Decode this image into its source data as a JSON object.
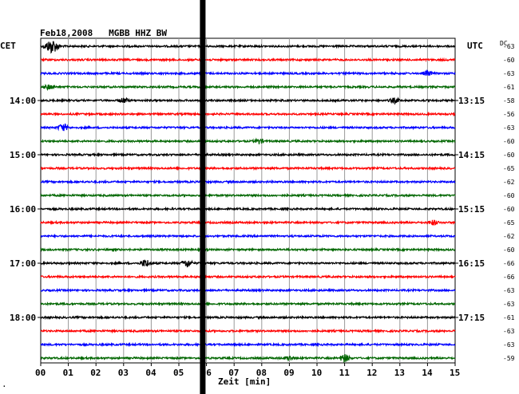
{
  "header": {
    "title": "Feb18,2008   MGBB HHZ BW",
    "left_timezone": "CET",
    "right_timezone": "UTC",
    "dc_label": "DC"
  },
  "footer": {
    "corner_mark": "."
  },
  "chart_data": {
    "type": "line",
    "title": "Feb18,2008   MGBB HHZ BW",
    "xlabel": "Zeit [min]",
    "xlim": [
      0,
      15
    ],
    "x_ticks": [
      "00",
      "01",
      "02",
      "03",
      "04",
      "05",
      "06",
      "07",
      "08",
      "09",
      "10",
      "11",
      "12",
      "13",
      "14",
      "15"
    ],
    "trace_colors": [
      "#000000",
      "#ff0000",
      "#0000ff",
      "#006600"
    ],
    "left_hour_labels": [
      {
        "trace": 4,
        "text": "14:00"
      },
      {
        "trace": 8,
        "text": "15:00"
      },
      {
        "trace": 12,
        "text": "16:00"
      },
      {
        "trace": 16,
        "text": "17:00"
      },
      {
        "trace": 20,
        "text": "18:00"
      }
    ],
    "right_hour_labels": [
      {
        "trace": 4,
        "text": "13:15"
      },
      {
        "trace": 8,
        "text": "14:15"
      },
      {
        "trace": 12,
        "text": "15:15"
      },
      {
        "trace": 16,
        "text": "16:15"
      },
      {
        "trace": 20,
        "text": "17:15"
      }
    ],
    "dc_offsets": [
      -63,
      -60,
      -63,
      -61,
      -58,
      -56,
      -63,
      -60,
      -60,
      -65,
      -62,
      -60,
      -60,
      -65,
      -62,
      -60,
      -66,
      -66,
      -63,
      -63,
      -61,
      -63,
      -63,
      -59
    ],
    "events": [
      {
        "trace": 0,
        "minute": 0.4,
        "amplitude": "large"
      },
      {
        "trace": 2,
        "minute": 14.0,
        "amplitude": "small"
      },
      {
        "trace": 3,
        "minute": 0.3,
        "amplitude": "small"
      },
      {
        "trace": 4,
        "minute": 3.0,
        "amplitude": "small"
      },
      {
        "trace": 4,
        "minute": 12.8,
        "amplitude": "small"
      },
      {
        "trace": 6,
        "minute": 0.8,
        "amplitude": "medium"
      },
      {
        "trace": 7,
        "minute": 7.9,
        "amplitude": "small"
      },
      {
        "trace": 13,
        "minute": 14.2,
        "amplitude": "small"
      },
      {
        "trace": 16,
        "minute": 3.8,
        "amplitude": "medium"
      },
      {
        "trace": 16,
        "minute": 5.3,
        "amplitude": "medium"
      },
      {
        "trace": 23,
        "minute": 9.0,
        "amplitude": "small"
      },
      {
        "trace": 23,
        "minute": 11.0,
        "amplitude": "medium"
      }
    ],
    "gap_marker": {
      "minute": 5.85,
      "description": "vertical black bar"
    },
    "grid": true
  }
}
